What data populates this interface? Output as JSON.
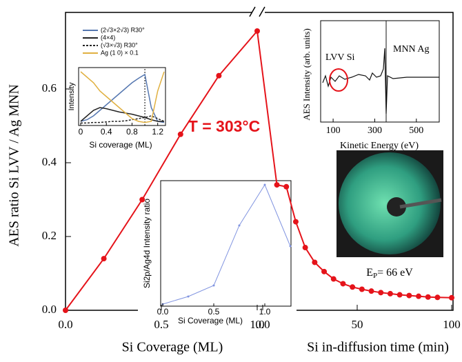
{
  "chart_data": [
    {
      "type": "line",
      "ylabel": "AES ratio Si LVV / Ag MNN",
      "xlabel": "Si Coverage (ML)",
      "x": [
        0,
        0.2,
        0.4,
        0.6,
        0.8,
        1.0
      ],
      "values": [
        0,
        0.14,
        0.3,
        0.477,
        0.636,
        0.757
      ],
      "color": "#e5131a",
      "xlim": [
        0,
        1.0
      ],
      "xticks": [
        {
          "value": 0,
          "label": "0.0"
        },
        0.5,
        {
          "value": 1,
          "label": "1.0"
        }
      ],
      "ylim": [
        0,
        0.8
      ],
      "yticks": [
        {
          "value": 0,
          "label": "0.0"
        },
        0.2,
        0.4,
        0.6
      ],
      "annotation": "T = 303°C"
    },
    {
      "type": "line",
      "xlabel": "Si in-diffusion time (min)",
      "x": [
        7.5,
        12.5,
        17.5,
        22.5,
        27.5,
        32.5,
        37.5,
        42.5,
        47.5,
        52.5,
        57.5,
        62.5,
        67.5,
        72.5,
        77.5,
        82.5,
        87.5,
        92.5,
        100
      ],
      "values": [
        0.34,
        0.335,
        0.24,
        0.17,
        0.13,
        0.105,
        0.085,
        0.072,
        0.063,
        0.057,
        0.052,
        0.048,
        0.045,
        0.042,
        0.04,
        0.038,
        0.036,
        0.035,
        0.034
      ],
      "color": "#e5131a",
      "xlim": [
        0,
        100
      ],
      "xticks": [
        {
          "value": 0,
          "label": "0.0"
        },
        50,
        100
      ],
      "ylim": [
        0,
        0.8
      ]
    },
    {
      "type": "line",
      "ylabel": "Intensity",
      "xlabel": "Si coverage (ML)",
      "x": [
        0,
        0.1,
        0.2,
        0.3,
        0.4,
        0.5,
        0.6,
        0.7,
        0.8,
        0.9,
        1.0,
        1.1,
        1.2,
        1.3
      ],
      "series": [
        {
          "name": "(2√3×2√3) R30°",
          "color": "#5577b0",
          "values": [
            0.05,
            0.08,
            0.15,
            0.25,
            0.35,
            0.45,
            0.55,
            0.65,
            0.75,
            0.83,
            0.9,
            0.3,
            0.05,
            0.03
          ]
        },
        {
          "name": "(4×4)",
          "color": "#222222",
          "values": [
            0.05,
            0.15,
            0.25,
            0.3,
            0.28,
            0.25,
            0.22,
            0.2,
            0.18,
            0.15,
            0.12,
            0.08,
            0.05,
            0.05
          ]
        },
        {
          "name": "(√3×√3) R30°",
          "color": "#222222",
          "dashed": true,
          "values": [
            0.02,
            0.02,
            0.03,
            0.03,
            0.04,
            0.05,
            0.05,
            0.06,
            0.08,
            0.1,
            0.12,
            0.15,
            0.1,
            0.05
          ]
        },
        {
          "name": "Ag (1 0)  × 0.1",
          "color": "#e0b040",
          "values": [
            0.95,
            0.85,
            0.75,
            0.6,
            0.5,
            0.4,
            0.3,
            0.2,
            0.1,
            0.05,
            0.03,
            0.05,
            0.6,
            0.95
          ]
        }
      ],
      "xlim": [
        0,
        1.3
      ],
      "xticks": [
        0,
        0.4,
        0.8,
        1.2
      ],
      "ylim": [
        0,
        1
      ]
    },
    {
      "type": "spectrum",
      "ylabel": "AES Intensity (arb. units)",
      "xlabel": "Kinetic Energy (eV)",
      "xlim": [
        40,
        610
      ],
      "xticks": [
        100,
        300,
        500
      ],
      "annotations": [
        "LVV Si",
        "MNN Ag"
      ]
    },
    {
      "type": "line",
      "ylabel": "Si2p/Ag4d Intensity ratio",
      "xlabel": "Si Coverage (ML)",
      "x": [
        0,
        0.25,
        0.5,
        0.75,
        1.0,
        1.25
      ],
      "values": [
        0.016,
        0.077,
        0.165,
        0.643,
        0.967,
        0.478
      ],
      "color": "#8094e0",
      "xlim": [
        0,
        1.25
      ],
      "xticks": [
        {
          "value": 0,
          "label": "0.0"
        },
        0.5,
        {
          "value": 1,
          "label": "1.0"
        }
      ],
      "ylim": [
        0,
        1
      ]
    }
  ],
  "image_label": {
    "main": "E",
    "sub": "P",
    "rest": "= 66 eV"
  }
}
